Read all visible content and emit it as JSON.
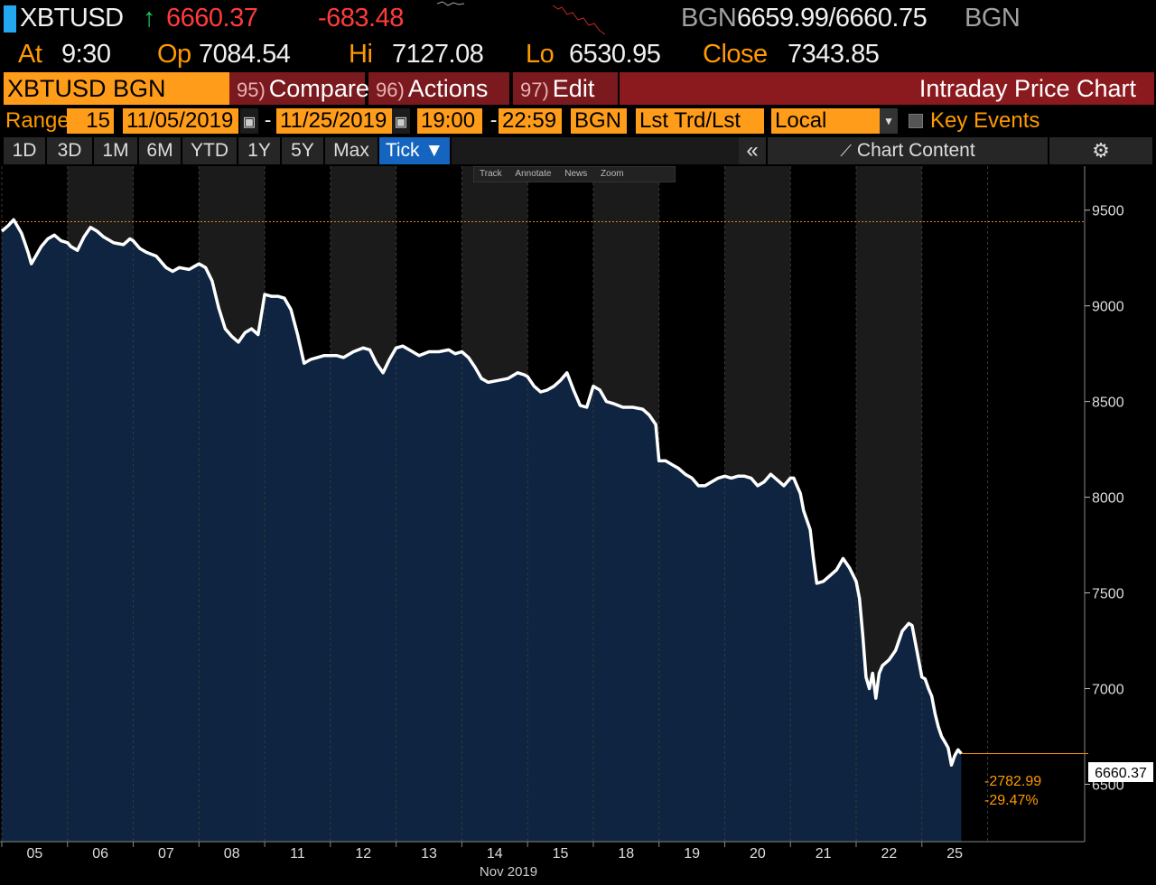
{
  "header": {
    "ticker": "XBTUSD",
    "arrow": "↑",
    "last_price": "6660.37",
    "change": "-683.48",
    "bid_source": "BGN",
    "bid_ask": "6659.99/6660.75",
    "ask_source": "BGN"
  },
  "quote_row": {
    "at_label": "At",
    "at_time": "9:30",
    "open_label": "Op",
    "open_value": "7084.54",
    "high_label": "Hi",
    "high_value": "7127.08",
    "low_label": "Lo",
    "low_value": "6530.95",
    "close_label": "Close",
    "close_value": "7343.85"
  },
  "toolbar": {
    "security": "XBTUSD BGN Curncy",
    "compare_num": "95)",
    "compare_label": "Compare",
    "actions_num": "96)",
    "actions_label": "Actions",
    "edit_num": "97)",
    "edit_label": "Edit",
    "title": "Intraday Price Chart"
  },
  "range_row": {
    "range_label": "Range",
    "interval": "15",
    "start_date": "11/05/2019",
    "end_date": "11/25/2019",
    "start_time": "19:00",
    "end_time": "22:59",
    "source": "BGN",
    "market_data": "Lst Trd/Lst P",
    "currency": "Local CCY",
    "key_events": "Key Events"
  },
  "period_tabs": [
    "1D",
    "3D",
    "1M",
    "6M",
    "YTD",
    "1Y",
    "5Y",
    "Max",
    "Tick ▼"
  ],
  "chart_content_label": "Chart Content",
  "mini_toolbar": [
    "Track",
    "Annotate",
    "News",
    "Zoom"
  ],
  "colors": {
    "accent_orange": "#ff9d1a",
    "title_maroon": "#8b1a1f",
    "price_down": "#ff3b3b",
    "line": "#ffffff",
    "area_fill": "#0e2440",
    "active_tab": "#1565c0"
  },
  "chart_data": {
    "type": "area",
    "x_tick_labels": [
      "05",
      "06",
      "07",
      "08",
      "11",
      "12",
      "13",
      "14",
      "15",
      "18",
      "19",
      "20",
      "21",
      "22",
      "25"
    ],
    "x_axis_title": "Nov 2019",
    "y_ticks": [
      6500,
      7000,
      7500,
      8000,
      8500,
      9000,
      9500
    ],
    "ylim": [
      6200,
      9730
    ],
    "reference_line": 9440,
    "last_value_label": "6660.37",
    "change_label": "-2782.99",
    "change_pct_label": "-29.47%",
    "series": [
      {
        "values": [
          [
            0.0,
            9390
          ],
          [
            0.1,
            9420
          ],
          [
            0.18,
            9450
          ],
          [
            0.3,
            9380
          ],
          [
            0.35,
            9330
          ],
          [
            0.4,
            9280
          ],
          [
            0.45,
            9220
          ],
          [
            0.5,
            9250
          ],
          [
            0.6,
            9310
          ],
          [
            0.7,
            9350
          ],
          [
            0.8,
            9370
          ],
          [
            0.9,
            9340
          ],
          [
            1.0,
            9330
          ],
          [
            1.05,
            9310
          ],
          [
            1.15,
            9290
          ],
          [
            1.25,
            9360
          ],
          [
            1.35,
            9410
          ],
          [
            1.45,
            9390
          ],
          [
            1.55,
            9360
          ],
          [
            1.7,
            9330
          ],
          [
            1.85,
            9320
          ],
          [
            1.95,
            9350
          ],
          [
            2.0,
            9340
          ],
          [
            2.1,
            9300
          ],
          [
            2.2,
            9280
          ],
          [
            2.35,
            9260
          ],
          [
            2.5,
            9200
          ],
          [
            2.6,
            9180
          ],
          [
            2.7,
            9200
          ],
          [
            2.85,
            9190
          ],
          [
            2.95,
            9210
          ],
          [
            3.0,
            9220
          ],
          [
            3.1,
            9200
          ],
          [
            3.2,
            9130
          ],
          [
            3.3,
            8990
          ],
          [
            3.4,
            8880
          ],
          [
            3.5,
            8840
          ],
          [
            3.6,
            8810
          ],
          [
            3.7,
            8860
          ],
          [
            3.8,
            8880
          ],
          [
            3.9,
            8850
          ],
          [
            4.0,
            9060
          ],
          [
            4.1,
            9050
          ],
          [
            4.2,
            9050
          ],
          [
            4.3,
            9040
          ],
          [
            4.4,
            8980
          ],
          [
            4.5,
            8850
          ],
          [
            4.6,
            8700
          ],
          [
            4.7,
            8720
          ],
          [
            4.8,
            8730
          ],
          [
            4.9,
            8740
          ],
          [
            5.0,
            8740
          ],
          [
            5.1,
            8740
          ],
          [
            5.2,
            8730
          ],
          [
            5.35,
            8760
          ],
          [
            5.5,
            8780
          ],
          [
            5.6,
            8770
          ],
          [
            5.7,
            8700
          ],
          [
            5.8,
            8650
          ],
          [
            5.9,
            8720
          ],
          [
            6.0,
            8780
          ],
          [
            6.1,
            8790
          ],
          [
            6.2,
            8770
          ],
          [
            6.35,
            8740
          ],
          [
            6.5,
            8760
          ],
          [
            6.65,
            8760
          ],
          [
            6.8,
            8770
          ],
          [
            6.9,
            8750
          ],
          [
            7.0,
            8760
          ],
          [
            7.1,
            8730
          ],
          [
            7.2,
            8680
          ],
          [
            7.3,
            8620
          ],
          [
            7.4,
            8600
          ],
          [
            7.55,
            8610
          ],
          [
            7.7,
            8620
          ],
          [
            7.85,
            8650
          ],
          [
            7.95,
            8640
          ],
          [
            8.0,
            8630
          ],
          [
            8.1,
            8580
          ],
          [
            8.2,
            8550
          ],
          [
            8.3,
            8560
          ],
          [
            8.4,
            8580
          ],
          [
            8.5,
            8610
          ],
          [
            8.6,
            8650
          ],
          [
            8.7,
            8560
          ],
          [
            8.8,
            8480
          ],
          [
            8.9,
            8470
          ],
          [
            9.0,
            8580
          ],
          [
            9.1,
            8560
          ],
          [
            9.2,
            8500
          ],
          [
            9.3,
            8490
          ],
          [
            9.45,
            8470
          ],
          [
            9.6,
            8470
          ],
          [
            9.75,
            8460
          ],
          [
            9.85,
            8430
          ],
          [
            9.95,
            8380
          ],
          [
            10.0,
            8190
          ],
          [
            10.1,
            8190
          ],
          [
            10.2,
            8170
          ],
          [
            10.3,
            8150
          ],
          [
            10.4,
            8120
          ],
          [
            10.5,
            8100
          ],
          [
            10.6,
            8060
          ],
          [
            10.7,
            8060
          ],
          [
            10.8,
            8080
          ],
          [
            10.9,
            8100
          ],
          [
            11.0,
            8110
          ],
          [
            11.1,
            8100
          ],
          [
            11.2,
            8110
          ],
          [
            11.3,
            8110
          ],
          [
            11.4,
            8100
          ],
          [
            11.5,
            8060
          ],
          [
            11.6,
            8080
          ],
          [
            11.7,
            8120
          ],
          [
            11.8,
            8090
          ],
          [
            11.9,
            8060
          ],
          [
            12.0,
            8100
          ],
          [
            12.05,
            8100
          ],
          [
            12.1,
            8060
          ],
          [
            12.15,
            8020
          ],
          [
            12.2,
            7930
          ],
          [
            12.3,
            7830
          ],
          [
            12.35,
            7680
          ],
          [
            12.4,
            7550
          ],
          [
            12.5,
            7560
          ],
          [
            12.6,
            7590
          ],
          [
            12.7,
            7620
          ],
          [
            12.8,
            7680
          ],
          [
            12.9,
            7630
          ],
          [
            13.0,
            7560
          ],
          [
            13.05,
            7470
          ],
          [
            13.1,
            7280
          ],
          [
            13.15,
            7060
          ],
          [
            13.2,
            7000
          ],
          [
            13.25,
            7080
          ],
          [
            13.3,
            6950
          ],
          [
            13.35,
            7080
          ],
          [
            13.4,
            7120
          ],
          [
            13.5,
            7150
          ],
          [
            13.6,
            7200
          ],
          [
            13.7,
            7300
          ],
          [
            13.8,
            7340
          ],
          [
            13.85,
            7330
          ],
          [
            14.0,
            7060
          ],
          [
            14.05,
            7050
          ],
          [
            14.1,
            7000
          ],
          [
            14.15,
            6960
          ],
          [
            14.2,
            6870
          ],
          [
            14.25,
            6800
          ],
          [
            14.3,
            6750
          ],
          [
            14.35,
            6720
          ],
          [
            14.4,
            6690
          ],
          [
            14.45,
            6600
          ],
          [
            14.5,
            6650
          ],
          [
            14.55,
            6680
          ],
          [
            14.6,
            6660
          ]
        ]
      }
    ]
  }
}
